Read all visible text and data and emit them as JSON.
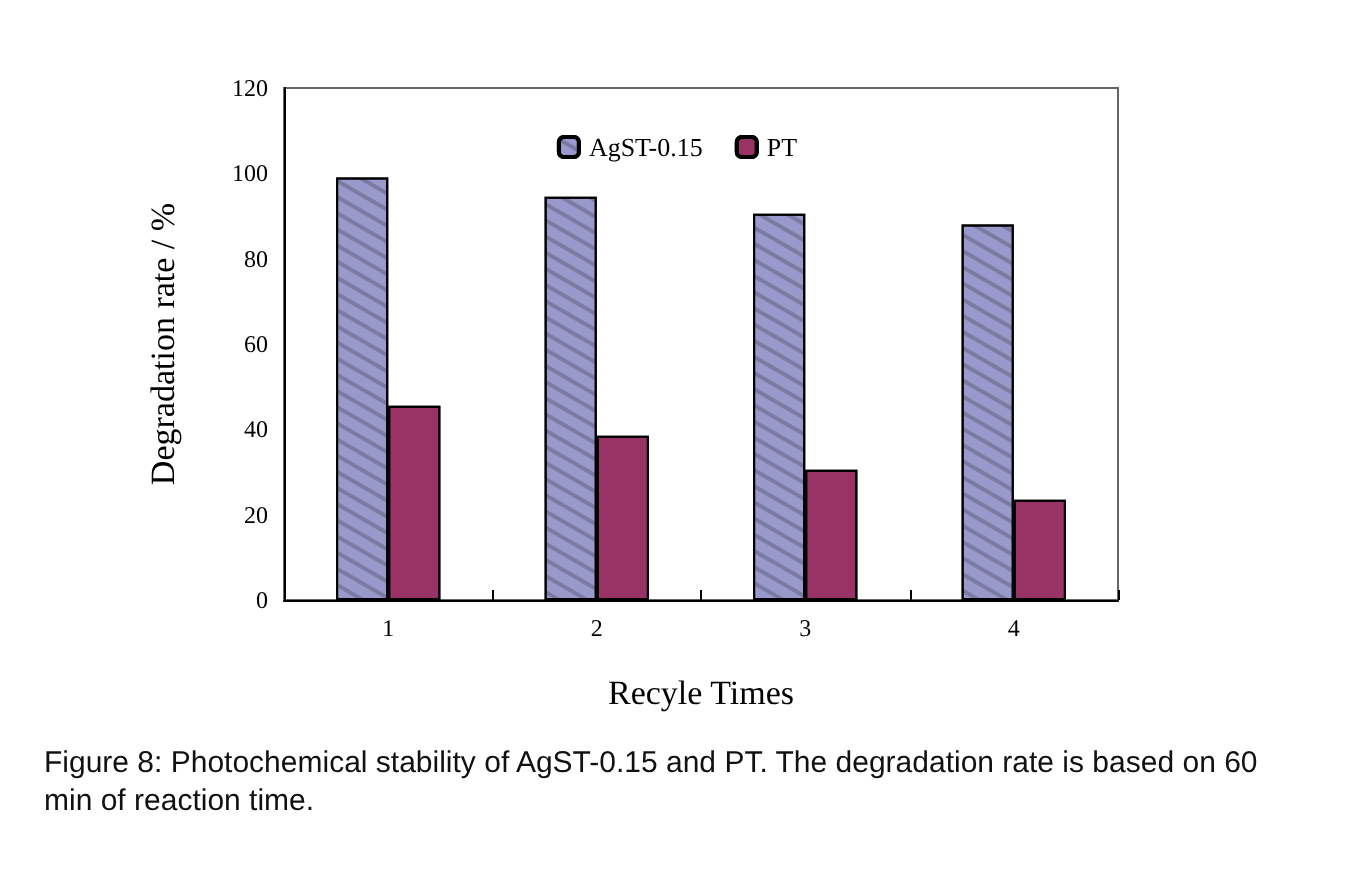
{
  "chart_data": {
    "type": "bar",
    "xlabel": "Recyle Times",
    "ylabel": "Degradation rate / %",
    "categories": [
      "1",
      "2",
      "3",
      "4"
    ],
    "series": [
      {
        "name": "AgST-0.15",
        "color": "#9999cc",
        "values": [
          99,
          94.5,
          90.5,
          88
        ]
      },
      {
        "name": "PT",
        "color": "#993366",
        "values": [
          45.5,
          38.5,
          30.5,
          23.5
        ]
      }
    ],
    "ylim": [
      0,
      120
    ],
    "yticks": [
      0,
      20,
      40,
      60,
      80,
      100,
      120
    ],
    "grid": false,
    "legend": "top",
    "annotations": [
      "Figure 8: Photochemical stability of AgST-0.15 and PT. The degradation rate is based on 60 min of reaction time."
    ]
  }
}
